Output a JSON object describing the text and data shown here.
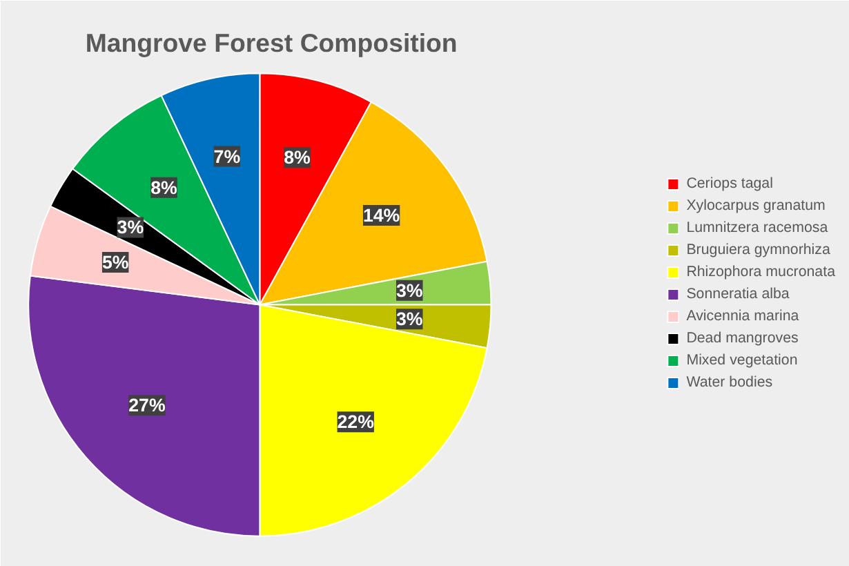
{
  "chart_data": {
    "type": "pie",
    "title": "Mangrove Forest Composition",
    "categories": [
      "Ceriops tagal",
      "Xylocarpus granatum",
      "Lumnitzera racemosa",
      "Bruguiera gymnorhiza",
      "Rhizophora mucronata",
      "Sonneratia alba",
      "Avicennia marina",
      "Dead mangroves",
      "Mixed vegetation",
      "Water bodies"
    ],
    "values": [
      8,
      14,
      3,
      3,
      22,
      27,
      5,
      3,
      8,
      7
    ],
    "colors": [
      "#ff0000",
      "#ffc000",
      "#92d050",
      "#c0c000",
      "#ffff00",
      "#7030a0",
      "#ffcccc",
      "#000000",
      "#00b050",
      "#0070c0"
    ],
    "value_labels": [
      "8%",
      "14%",
      "3%",
      "3%",
      "22%",
      "27%",
      "5%",
      "3%",
      "8%",
      "7%"
    ],
    "legend": "right"
  }
}
